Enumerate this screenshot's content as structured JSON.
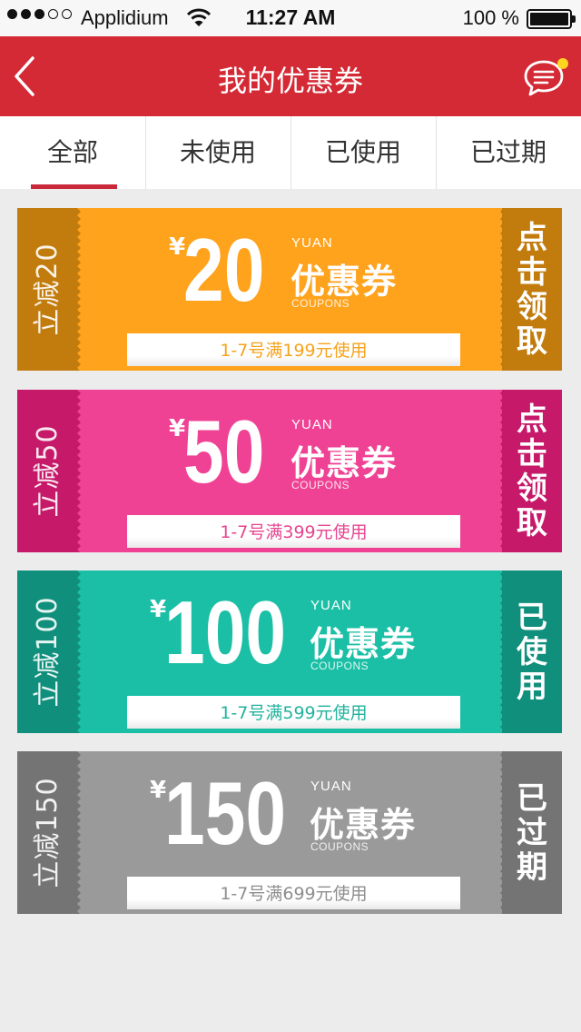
{
  "status_bar": {
    "carrier": "Applidium",
    "time": "11:27 AM",
    "battery": "100 %"
  },
  "nav": {
    "title": "我的优惠券"
  },
  "tabs": [
    {
      "label": "全部",
      "active": true
    },
    {
      "label": "未使用",
      "active": false
    },
    {
      "label": "已使用",
      "active": false
    },
    {
      "label": "已过期",
      "active": false
    }
  ],
  "coupons": [
    {
      "side_label": "立减20",
      "currency": "¥",
      "amount": "20",
      "yuan": "YUAN",
      "brand": "优惠券",
      "coupons_en": "COUPONS",
      "condition": "1-7号满199元使用",
      "action": [
        "点",
        "击",
        "领",
        "取"
      ],
      "colors": {
        "main": "#ffa21c",
        "side": "#c27c0e",
        "text": "#f6a31d"
      }
    },
    {
      "side_label": "立减50",
      "currency": "¥",
      "amount": "50",
      "yuan": "YUAN",
      "brand": "优惠券",
      "coupons_en": "COUPONS",
      "condition": "1-7号满399元使用",
      "action": [
        "点",
        "击",
        "领",
        "取"
      ],
      "colors": {
        "main": "#ef4294",
        "side": "#c6196a",
        "text": "#e64690"
      }
    },
    {
      "side_label": "立减100",
      "currency": "¥",
      "amount": "100",
      "yuan": "YUAN",
      "brand": "优惠券",
      "coupons_en": "COUPONS",
      "condition": "1-7号满599元使用",
      "action": [
        "已",
        "使",
        "用"
      ],
      "colors": {
        "main": "#1bbfa6",
        "side": "#0f8f7c",
        "text": "#22b39d"
      }
    },
    {
      "side_label": "立减150",
      "currency": "¥",
      "amount": "150",
      "yuan": "YUAN",
      "brand": "优惠券",
      "coupons_en": "COUPONS",
      "condition": "1-7号满699元使用",
      "action": [
        "已",
        "过",
        "期"
      ],
      "colors": {
        "main": "#9a9a9a",
        "side": "#747474",
        "text": "#8e8e8e"
      }
    }
  ]
}
